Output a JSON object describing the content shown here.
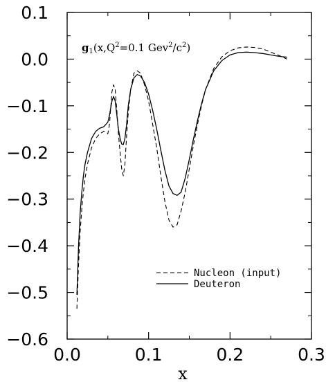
{
  "chart_data": {
    "type": "line",
    "annotation": {
      "prefix": "g",
      "subscript": "1",
      "body_a": "(x,Q",
      "body_b": "2",
      "body_c": "=0.1  Gev",
      "body_d": "2",
      "body_e": "/c",
      "body_f": "2",
      "body_g": ")"
    },
    "xlabel": "x",
    "ylabel": "",
    "xlim": [
      0.0,
      0.3
    ],
    "ylim": [
      -0.6,
      0.1
    ],
    "x_ticks": [
      0.0,
      0.1,
      0.2,
      0.3
    ],
    "x_tick_labels": [
      "0.0",
      "0.1",
      "0.2",
      "0.3"
    ],
    "y_ticks": [
      0.1,
      0.0,
      -0.1,
      -0.2,
      -0.3,
      -0.4,
      -0.5,
      -0.6
    ],
    "y_tick_labels": [
      "0.1",
      "0.0",
      "−0.1",
      "−0.2",
      "−0.3",
      "−0.4",
      "−0.5",
      "−0.6"
    ],
    "grid": false,
    "legend_position": "bottom-right",
    "series": [
      {
        "name": "Nucleon (input)",
        "style": "dashed",
        "color": "#000000",
        "x": [
          0.012,
          0.014,
          0.016,
          0.018,
          0.02,
          0.022,
          0.025,
          0.03,
          0.035,
          0.04,
          0.045,
          0.05,
          0.052,
          0.055,
          0.057,
          0.059,
          0.061,
          0.063,
          0.065,
          0.067,
          0.069,
          0.071,
          0.073,
          0.075,
          0.078,
          0.082,
          0.086,
          0.09,
          0.095,
          0.1,
          0.105,
          0.11,
          0.115,
          0.12,
          0.125,
          0.13,
          0.135,
          0.14,
          0.145,
          0.15,
          0.155,
          0.16,
          0.165,
          0.17,
          0.18,
          0.19,
          0.2,
          0.21,
          0.22,
          0.23,
          0.24,
          0.25,
          0.26,
          0.27
        ],
        "y": [
          -0.535,
          -0.44,
          -0.37,
          -0.32,
          -0.285,
          -0.255,
          -0.225,
          -0.19,
          -0.17,
          -0.16,
          -0.155,
          -0.16,
          -0.14,
          -0.07,
          -0.055,
          -0.065,
          -0.11,
          -0.16,
          -0.2,
          -0.235,
          -0.25,
          -0.225,
          -0.165,
          -0.115,
          -0.065,
          -0.03,
          -0.025,
          -0.03,
          -0.055,
          -0.09,
          -0.14,
          -0.19,
          -0.25,
          -0.305,
          -0.345,
          -0.36,
          -0.355,
          -0.325,
          -0.285,
          -0.235,
          -0.185,
          -0.14,
          -0.1,
          -0.065,
          -0.02,
          0.005,
          0.018,
          0.024,
          0.026,
          0.025,
          0.022,
          0.015,
          0.008,
          0.0
        ]
      },
      {
        "name": "Deuteron",
        "style": "solid",
        "color": "#000000",
        "x": [
          0.012,
          0.014,
          0.016,
          0.018,
          0.02,
          0.022,
          0.025,
          0.03,
          0.035,
          0.04,
          0.045,
          0.05,
          0.052,
          0.055,
          0.057,
          0.059,
          0.061,
          0.063,
          0.065,
          0.067,
          0.069,
          0.071,
          0.073,
          0.075,
          0.078,
          0.082,
          0.086,
          0.09,
          0.095,
          0.1,
          0.105,
          0.11,
          0.115,
          0.12,
          0.125,
          0.13,
          0.135,
          0.14,
          0.145,
          0.15,
          0.155,
          0.16,
          0.165,
          0.17,
          0.18,
          0.19,
          0.2,
          0.21,
          0.22,
          0.23,
          0.24,
          0.25,
          0.26,
          0.27
        ],
        "y": [
          -0.505,
          -0.4,
          -0.33,
          -0.285,
          -0.25,
          -0.225,
          -0.2,
          -0.17,
          -0.155,
          -0.148,
          -0.145,
          -0.135,
          -0.12,
          -0.09,
          -0.08,
          -0.09,
          -0.12,
          -0.15,
          -0.17,
          -0.182,
          -0.183,
          -0.17,
          -0.14,
          -0.1,
          -0.065,
          -0.04,
          -0.033,
          -0.036,
          -0.05,
          -0.075,
          -0.11,
          -0.15,
          -0.195,
          -0.238,
          -0.272,
          -0.288,
          -0.292,
          -0.285,
          -0.255,
          -0.215,
          -0.172,
          -0.132,
          -0.096,
          -0.065,
          -0.025,
          -0.003,
          0.009,
          0.014,
          0.015,
          0.014,
          0.012,
          0.009,
          0.006,
          0.004
        ]
      }
    ]
  }
}
